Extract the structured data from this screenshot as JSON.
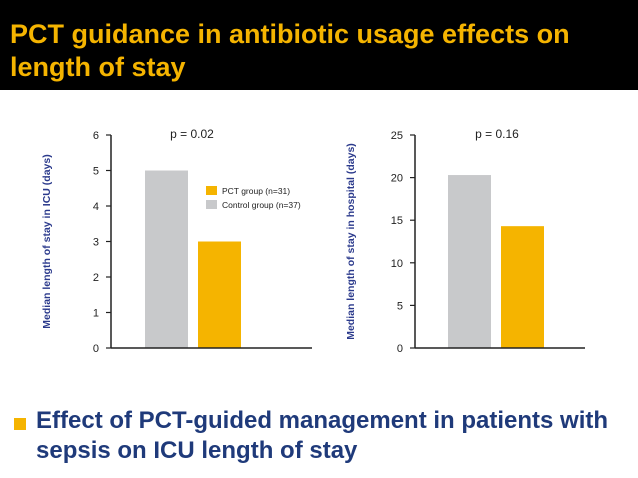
{
  "slide": {
    "title": "PCT guidance in antibiotic usage effects on length of stay",
    "caption": "Effect of PCT-guided management in patients with sepsis on ICU length of stay"
  },
  "colors": {
    "title_bg": "#000000",
    "title_text": "#f5b400",
    "caption_text": "#1f3a7a",
    "bullet": "#f5b400",
    "pct_bar": "#f5b400",
    "control_bar": "#c8c9cb",
    "axis_label": "#2b3a8c"
  },
  "chart_data": [
    {
      "type": "bar",
      "annotation": "p = 0.02",
      "ylabel": "Median length of stay in ICU (days)",
      "xlabel": "",
      "ylim": [
        0,
        6
      ],
      "yticks": [
        "0",
        "1",
        "2",
        "3",
        "4",
        "5",
        "6"
      ],
      "categories": [
        "Control group (n=37)",
        "PCT group (n=31)"
      ],
      "series": [
        {
          "name": "Control group (n=37)",
          "values": [
            5,
            null
          ],
          "color": "#c8c9cb"
        },
        {
          "name": "PCT group (n=31)",
          "values": [
            null,
            3
          ],
          "color": "#f5b400"
        }
      ],
      "legend": {
        "placement": "right",
        "entries": [
          {
            "label": "PCT group (n=31)",
            "color": "#f5b400"
          },
          {
            "label": "Control group (n=37)",
            "color": "#c8c9cb"
          }
        ]
      },
      "grid": false
    },
    {
      "type": "bar",
      "annotation": "p = 0.16",
      "ylabel": "Median length of stay in hospital (days)",
      "xlabel": "",
      "ylim": [
        0,
        25
      ],
      "yticks": [
        "0",
        "5",
        "10",
        "15",
        "20",
        "25"
      ],
      "categories": [
        "Control group (n=37)",
        "PCT group (n=31)"
      ],
      "series": [
        {
          "name": "Control group (n=37)",
          "values": [
            20.3,
            null
          ],
          "color": "#c8c9cb"
        },
        {
          "name": "PCT group (n=31)",
          "values": [
            null,
            14.3
          ],
          "color": "#f5b400"
        }
      ],
      "grid": false
    }
  ]
}
